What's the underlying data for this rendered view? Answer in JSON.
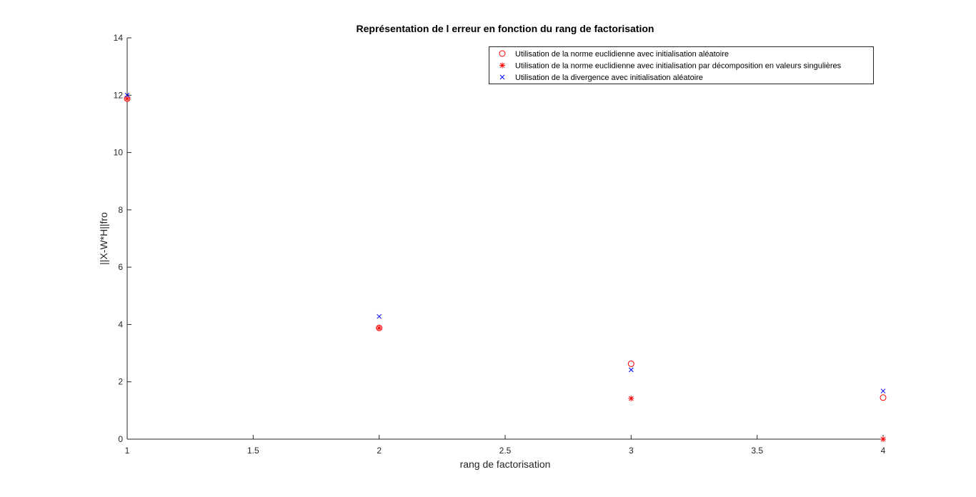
{
  "chart_data": {
    "type": "scatter",
    "title": "Représentation de l erreur en fonction du rang de factorisation",
    "xlabel": "rang de factorisation",
    "ylabel": "||X-W*H||fro",
    "xlim": [
      1,
      4
    ],
    "ylim": [
      0,
      14
    ],
    "xticks": [
      "1",
      "1.5",
      "2",
      "2.5",
      "3",
      "3.5",
      "4"
    ],
    "yticks": [
      "0",
      "2",
      "4",
      "6",
      "8",
      "10",
      "12",
      "14"
    ],
    "grid": false,
    "legend_position": "top-right",
    "series": [
      {
        "name": "Utilisation de la norme euclidienne avec initialisation aléatoire",
        "marker": "circle",
        "color": "#ff0000",
        "x": [
          1,
          2,
          3,
          4
        ],
        "y": [
          11.88,
          3.88,
          2.63,
          1.45
        ]
      },
      {
        "name": "Utilisation de la norme euclidienne avec initialisation par décomposition en valeurs singulières",
        "marker": "asterisk",
        "color": "#ff0000",
        "x": [
          1,
          2,
          3,
          4
        ],
        "y": [
          11.88,
          3.88,
          1.42,
          0.0
        ]
      },
      {
        "name": "Utilisation de la divergence avec initialisation aléatoire",
        "marker": "x",
        "color": "#0000ff",
        "x": [
          1,
          2,
          3,
          4
        ],
        "y": [
          12.0,
          4.28,
          2.42,
          1.68
        ]
      }
    ]
  }
}
